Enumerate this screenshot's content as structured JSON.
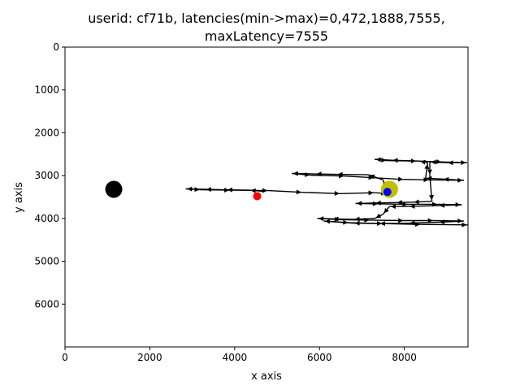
{
  "chart_data": {
    "type": "scatter",
    "title_line1": "userid: cf71b, latencies(min->max)=0,472,1888,7555,",
    "title_line2": "maxLatency=7555",
    "xlabel": "x axis",
    "ylabel": "y axis",
    "xlim": [
      0,
      9500
    ],
    "ylim": [
      7000,
      0
    ],
    "x_ticks": [
      0,
      2000,
      4000,
      6000,
      8000
    ],
    "y_ticks": [
      0,
      1000,
      2000,
      3000,
      4000,
      5000,
      6000
    ],
    "grid": false,
    "points": [
      {
        "label": "start",
        "x": 1150,
        "y": 3320,
        "color": "#000000",
        "size": "large"
      },
      {
        "label": "target",
        "x": 7650,
        "y": 3320,
        "color": "#bfbf00",
        "size": "large"
      },
      {
        "label": "red",
        "x": 4530,
        "y": 3480,
        "color": "#ff0000",
        "size": "small"
      },
      {
        "label": "blue",
        "x": 7600,
        "y": 3380,
        "color": "#0000ff",
        "size": "small"
      }
    ],
    "path": [
      [
        4700,
        3370
      ],
      [
        4350,
        3340
      ],
      [
        3800,
        3330
      ],
      [
        3300,
        3320
      ],
      [
        2850,
        3310
      ],
      [
        3200,
        3330
      ],
      [
        3900,
        3340
      ],
      [
        4800,
        3350
      ],
      [
        5600,
        3390
      ],
      [
        6500,
        3420
      ],
      [
        7300,
        3400
      ],
      [
        7600,
        3420
      ],
      [
        7500,
        3100
      ],
      [
        7150,
        2980
      ],
      [
        6400,
        2970
      ],
      [
        5900,
        2960
      ],
      [
        5350,
        2950
      ],
      [
        5800,
        2990
      ],
      [
        6600,
        3010
      ],
      [
        7300,
        3050
      ],
      [
        8000,
        3090
      ],
      [
        8600,
        3100
      ],
      [
        9400,
        3110
      ],
      [
        8900,
        3080
      ],
      [
        8500,
        3060
      ],
      [
        8550,
        2700
      ],
      [
        8350,
        2660
      ],
      [
        7700,
        2640
      ],
      [
        7300,
        2620
      ],
      [
        7600,
        2650
      ],
      [
        8300,
        2660
      ],
      [
        8900,
        2680
      ],
      [
        9480,
        2700
      ],
      [
        9000,
        2700
      ],
      [
        8600,
        2680
      ],
      [
        8600,
        3000
      ],
      [
        8650,
        3600
      ],
      [
        8200,
        3620
      ],
      [
        7800,
        3630
      ],
      [
        7300,
        3640
      ],
      [
        6850,
        3650
      ],
      [
        7400,
        3660
      ],
      [
        8100,
        3670
      ],
      [
        8800,
        3670
      ],
      [
        9350,
        3680
      ],
      [
        8800,
        3700
      ],
      [
        8100,
        3720
      ],
      [
        7650,
        3720
      ],
      [
        7500,
        3900
      ],
      [
        7300,
        4000
      ],
      [
        6800,
        4020
      ],
      [
        6300,
        4010
      ],
      [
        5950,
        4000
      ],
      [
        6500,
        4030
      ],
      [
        7200,
        4040
      ],
      [
        8000,
        4050
      ],
      [
        8700,
        4050
      ],
      [
        9400,
        4060
      ],
      [
        8800,
        4090
      ],
      [
        8100,
        4110
      ],
      [
        7400,
        4120
      ],
      [
        6800,
        4110
      ],
      [
        6100,
        4060
      ],
      [
        6700,
        4100
      ],
      [
        7500,
        4120
      ],
      [
        8400,
        4140
      ],
      [
        9500,
        4150
      ]
    ]
  }
}
